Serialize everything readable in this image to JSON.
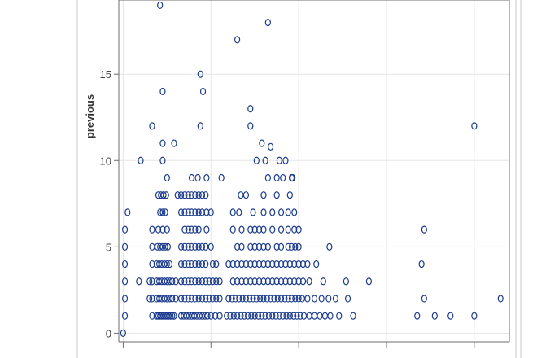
{
  "chart_data": {
    "type": "scatter",
    "ylabel": "previous",
    "xlabel": "",
    "yticks": [
      0,
      5,
      10,
      15
    ],
    "ylim": [
      -0.5,
      19.3
    ],
    "xlim": [
      -0.05,
      4.4
    ],
    "x_tick_positions": [
      0,
      1,
      2,
      3,
      4
    ],
    "grid": true,
    "marker": "open-circle",
    "marker_color": "#1a3a8c",
    "series": [
      {
        "points": [
          [
            0.0,
            0
          ],
          [
            0.02,
            1
          ],
          [
            0.02,
            2
          ],
          [
            0.02,
            3
          ],
          [
            0.02,
            4
          ],
          [
            0.02,
            5
          ],
          [
            0.02,
            6
          ],
          [
            0.05,
            7
          ],
          [
            0.3,
            3
          ],
          [
            0.3,
            2
          ],
          [
            0.18,
            3
          ],
          [
            0.2,
            10
          ],
          [
            0.33,
            1
          ],
          [
            0.33,
            2
          ],
          [
            0.33,
            3
          ],
          [
            0.33,
            4
          ],
          [
            0.33,
            5
          ],
          [
            0.33,
            6
          ],
          [
            0.33,
            12
          ],
          [
            0.38,
            1
          ],
          [
            0.4,
            1
          ],
          [
            0.42,
            1
          ],
          [
            0.44,
            1
          ],
          [
            0.46,
            1
          ],
          [
            0.48,
            1
          ],
          [
            0.5,
            1
          ],
          [
            0.52,
            1
          ],
          [
            0.54,
            1
          ],
          [
            0.56,
            1
          ],
          [
            0.58,
            1
          ],
          [
            0.38,
            2
          ],
          [
            0.41,
            2
          ],
          [
            0.44,
            2
          ],
          [
            0.47,
            2
          ],
          [
            0.5,
            2
          ],
          [
            0.53,
            2
          ],
          [
            0.56,
            2
          ],
          [
            0.38,
            3
          ],
          [
            0.41,
            3
          ],
          [
            0.44,
            3
          ],
          [
            0.47,
            3
          ],
          [
            0.5,
            3
          ],
          [
            0.53,
            3
          ],
          [
            0.56,
            3
          ],
          [
            0.38,
            4
          ],
          [
            0.41,
            4
          ],
          [
            0.44,
            4
          ],
          [
            0.47,
            4
          ],
          [
            0.5,
            4
          ],
          [
            0.53,
            4
          ],
          [
            0.39,
            5
          ],
          [
            0.42,
            5
          ],
          [
            0.45,
            5
          ],
          [
            0.48,
            5
          ],
          [
            0.51,
            5
          ],
          [
            0.4,
            6
          ],
          [
            0.45,
            6
          ],
          [
            0.5,
            6
          ],
          [
            0.42,
            7
          ],
          [
            0.45,
            7
          ],
          [
            0.48,
            7
          ],
          [
            0.4,
            8
          ],
          [
            0.43,
            8
          ],
          [
            0.46,
            8
          ],
          [
            0.49,
            8
          ],
          [
            0.5,
            9
          ],
          [
            0.45,
            10
          ],
          [
            0.45,
            11
          ],
          [
            0.45,
            14
          ],
          [
            0.42,
            19
          ],
          [
            0.58,
            11
          ],
          [
            0.6,
            2
          ],
          [
            0.6,
            3
          ],
          [
            0.66,
            1
          ],
          [
            0.69,
            1
          ],
          [
            0.72,
            1
          ],
          [
            0.75,
            1
          ],
          [
            0.78,
            1
          ],
          [
            0.81,
            1
          ],
          [
            0.84,
            1
          ],
          [
            0.87,
            1
          ],
          [
            0.9,
            1
          ],
          [
            0.93,
            1
          ],
          [
            0.96,
            1
          ],
          [
            1.0,
            1
          ],
          [
            1.05,
            1
          ],
          [
            1.1,
            1
          ],
          [
            0.66,
            2
          ],
          [
            0.7,
            2
          ],
          [
            0.74,
            2
          ],
          [
            0.78,
            2
          ],
          [
            0.82,
            2
          ],
          [
            0.86,
            2
          ],
          [
            0.9,
            2
          ],
          [
            0.94,
            2
          ],
          [
            0.98,
            2
          ],
          [
            1.02,
            2
          ],
          [
            1.06,
            2
          ],
          [
            1.1,
            2
          ],
          [
            0.66,
            3
          ],
          [
            0.7,
            3
          ],
          [
            0.74,
            3
          ],
          [
            0.78,
            3
          ],
          [
            0.82,
            3
          ],
          [
            0.86,
            3
          ],
          [
            0.9,
            3
          ],
          [
            0.94,
            3
          ],
          [
            0.98,
            3
          ],
          [
            1.02,
            3
          ],
          [
            1.06,
            3
          ],
          [
            1.1,
            3
          ],
          [
            0.66,
            4
          ],
          [
            0.7,
            4
          ],
          [
            0.74,
            4
          ],
          [
            0.78,
            4
          ],
          [
            0.82,
            4
          ],
          [
            0.86,
            4
          ],
          [
            0.9,
            4
          ],
          [
            0.94,
            4
          ],
          [
            1.02,
            4
          ],
          [
            1.06,
            4
          ],
          [
            0.66,
            5
          ],
          [
            0.7,
            5
          ],
          [
            0.74,
            5
          ],
          [
            0.78,
            5
          ],
          [
            0.82,
            5
          ],
          [
            0.86,
            5
          ],
          [
            0.9,
            5
          ],
          [
            0.94,
            5
          ],
          [
            1.0,
            5
          ],
          [
            0.7,
            6
          ],
          [
            0.74,
            6
          ],
          [
            0.78,
            6
          ],
          [
            0.82,
            6
          ],
          [
            0.86,
            6
          ],
          [
            0.95,
            6
          ],
          [
            0.66,
            7
          ],
          [
            0.7,
            7
          ],
          [
            0.74,
            7
          ],
          [
            0.78,
            7
          ],
          [
            0.82,
            7
          ],
          [
            0.86,
            7
          ],
          [
            0.9,
            7
          ],
          [
            0.95,
            7
          ],
          [
            1.0,
            7
          ],
          [
            0.62,
            8
          ],
          [
            0.66,
            8
          ],
          [
            0.7,
            8
          ],
          [
            0.74,
            8
          ],
          [
            0.78,
            8
          ],
          [
            0.82,
            8
          ],
          [
            0.86,
            8
          ],
          [
            0.9,
            8
          ],
          [
            0.94,
            8
          ],
          [
            0.78,
            9
          ],
          [
            0.85,
            9
          ],
          [
            0.95,
            9
          ],
          [
            1.12,
            9
          ],
          [
            0.88,
            12
          ],
          [
            0.88,
            15
          ],
          [
            0.91,
            14
          ],
          [
            1.18,
            1
          ],
          [
            1.22,
            1
          ],
          [
            1.26,
            1
          ],
          [
            1.3,
            1
          ],
          [
            1.34,
            1
          ],
          [
            1.38,
            1
          ],
          [
            1.42,
            1
          ],
          [
            1.46,
            1
          ],
          [
            1.5,
            1
          ],
          [
            1.54,
            1
          ],
          [
            1.58,
            1
          ],
          [
            1.62,
            1
          ],
          [
            1.66,
            1
          ],
          [
            1.7,
            1
          ],
          [
            1.74,
            1
          ],
          [
            1.78,
            1
          ],
          [
            1.82,
            1
          ],
          [
            1.86,
            1
          ],
          [
            1.9,
            1
          ],
          [
            1.94,
            1
          ],
          [
            1.98,
            1
          ],
          [
            2.02,
            1
          ],
          [
            2.06,
            1
          ],
          [
            2.12,
            1
          ],
          [
            2.18,
            1
          ],
          [
            2.24,
            1
          ],
          [
            2.3,
            1
          ],
          [
            2.36,
            1
          ],
          [
            2.46,
            1
          ],
          [
            2.62,
            1
          ],
          [
            1.2,
            2
          ],
          [
            1.24,
            2
          ],
          [
            1.28,
            2
          ],
          [
            1.32,
            2
          ],
          [
            1.36,
            2
          ],
          [
            1.4,
            2
          ],
          [
            1.44,
            2
          ],
          [
            1.48,
            2
          ],
          [
            1.52,
            2
          ],
          [
            1.56,
            2
          ],
          [
            1.6,
            2
          ],
          [
            1.64,
            2
          ],
          [
            1.68,
            2
          ],
          [
            1.72,
            2
          ],
          [
            1.76,
            2
          ],
          [
            1.8,
            2
          ],
          [
            1.84,
            2
          ],
          [
            1.88,
            2
          ],
          [
            1.92,
            2
          ],
          [
            1.96,
            2
          ],
          [
            2.0,
            2
          ],
          [
            2.04,
            2
          ],
          [
            2.1,
            2
          ],
          [
            2.18,
            2
          ],
          [
            2.26,
            2
          ],
          [
            2.34,
            2
          ],
          [
            2.42,
            2
          ],
          [
            2.56,
            2
          ],
          [
            1.25,
            3
          ],
          [
            1.3,
            3
          ],
          [
            1.35,
            3
          ],
          [
            1.4,
            3
          ],
          [
            1.45,
            3
          ],
          [
            1.5,
            3
          ],
          [
            1.55,
            3
          ],
          [
            1.6,
            3
          ],
          [
            1.65,
            3
          ],
          [
            1.7,
            3
          ],
          [
            1.75,
            3
          ],
          [
            1.8,
            3
          ],
          [
            1.85,
            3
          ],
          [
            1.9,
            3
          ],
          [
            1.95,
            3
          ],
          [
            2.0,
            3
          ],
          [
            2.05,
            3
          ],
          [
            2.12,
            3
          ],
          [
            2.28,
            3
          ],
          [
            2.54,
            3
          ],
          [
            2.8,
            3
          ],
          [
            1.2,
            4
          ],
          [
            1.25,
            4
          ],
          [
            1.3,
            4
          ],
          [
            1.35,
            4
          ],
          [
            1.4,
            4
          ],
          [
            1.45,
            4
          ],
          [
            1.5,
            4
          ],
          [
            1.55,
            4
          ],
          [
            1.6,
            4
          ],
          [
            1.65,
            4
          ],
          [
            1.7,
            4
          ],
          [
            1.75,
            4
          ],
          [
            1.8,
            4
          ],
          [
            1.85,
            4
          ],
          [
            1.9,
            4
          ],
          [
            1.95,
            4
          ],
          [
            2.0,
            4
          ],
          [
            2.05,
            4
          ],
          [
            2.1,
            4
          ],
          [
            2.2,
            4
          ],
          [
            1.3,
            5
          ],
          [
            1.35,
            5
          ],
          [
            1.45,
            5
          ],
          [
            1.5,
            5
          ],
          [
            1.55,
            5
          ],
          [
            1.6,
            5
          ],
          [
            1.65,
            5
          ],
          [
            1.75,
            5
          ],
          [
            1.8,
            5
          ],
          [
            1.88,
            5
          ],
          [
            1.92,
            5
          ],
          [
            1.96,
            5
          ],
          [
            2.0,
            5
          ],
          [
            2.35,
            5
          ],
          [
            1.25,
            6
          ],
          [
            1.35,
            6
          ],
          [
            1.45,
            6
          ],
          [
            1.5,
            6
          ],
          [
            1.55,
            6
          ],
          [
            1.6,
            6
          ],
          [
            1.7,
            6
          ],
          [
            1.8,
            6
          ],
          [
            1.88,
            6
          ],
          [
            1.95,
            6
          ],
          [
            2.0,
            6
          ],
          [
            1.25,
            7
          ],
          [
            1.32,
            7
          ],
          [
            1.48,
            7
          ],
          [
            1.6,
            7
          ],
          [
            1.7,
            7
          ],
          [
            1.8,
            7
          ],
          [
            1.88,
            7
          ],
          [
            1.95,
            7
          ],
          [
            1.34,
            8
          ],
          [
            1.4,
            8
          ],
          [
            1.6,
            8
          ],
          [
            1.75,
            8
          ],
          [
            1.9,
            8
          ],
          [
            1.65,
            9
          ],
          [
            1.75,
            9
          ],
          [
            1.82,
            9
          ],
          [
            1.92,
            9
          ],
          [
            1.93,
            9
          ],
          [
            1.52,
            10
          ],
          [
            1.62,
            10
          ],
          [
            1.78,
            10
          ],
          [
            1.85,
            10
          ],
          [
            1.58,
            11
          ],
          [
            1.68,
            10.8
          ],
          [
            1.45,
            12
          ],
          [
            1.45,
            13
          ],
          [
            1.3,
            17
          ],
          [
            1.65,
            18
          ],
          [
            3.35,
            1
          ],
          [
            3.55,
            1
          ],
          [
            3.73,
            1
          ],
          [
            4.0,
            1
          ],
          [
            4.3,
            2
          ],
          [
            3.43,
            2
          ],
          [
            3.4,
            4
          ],
          [
            3.43,
            6
          ],
          [
            4.0,
            12
          ]
        ]
      }
    ]
  }
}
